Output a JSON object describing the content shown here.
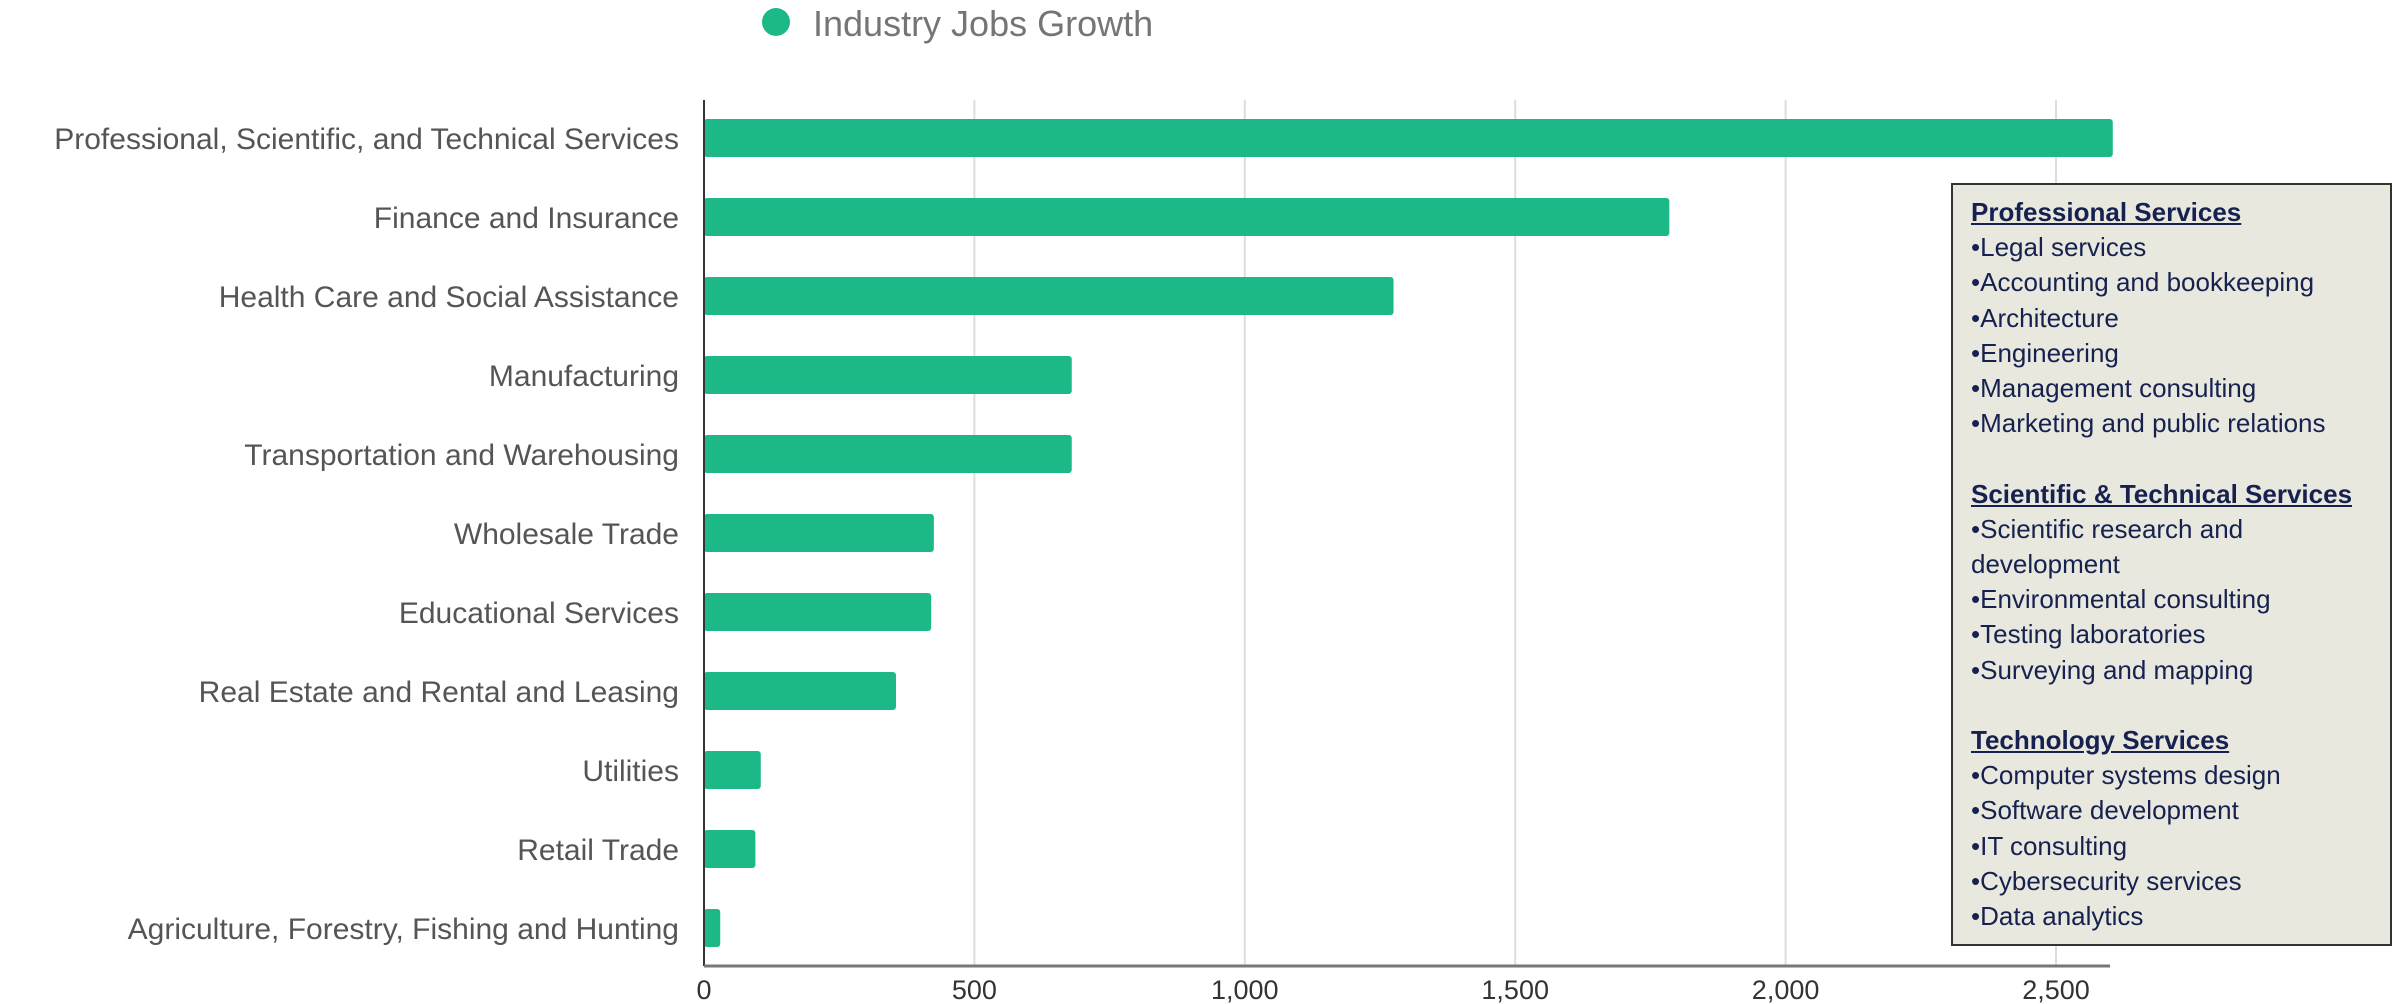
{
  "chart_data": {
    "type": "bar",
    "orientation": "horizontal",
    "categories": [
      "Professional, Scientific, and Technical Services",
      "Finance and Insurance",
      "Health Care and Social Assistance",
      "Manufacturing",
      "Transportation and Warehousing",
      "Wholesale Trade",
      "Educational Services",
      "Real Estate and Rental and Leasing",
      "Utilities",
      "Retail Trade",
      "Agriculture, Forestry, Fishing and Hunting"
    ],
    "series": [
      {
        "name": "Industry Jobs Growth",
        "values": [
          2605,
          1785,
          1275,
          680,
          680,
          425,
          420,
          355,
          105,
          95,
          30
        ]
      }
    ],
    "xlim": [
      0,
      2600
    ],
    "xticks": [
      0,
      500,
      1000,
      1500,
      2000,
      2500
    ],
    "xtick_labels": [
      "0",
      "500",
      "1,000",
      "1,500",
      "2,000",
      "2,500"
    ],
    "grid": true,
    "legend_position": "top",
    "colors": {
      "bar": "#1cb887",
      "grid": "#dddddd",
      "axis": "#333333"
    }
  },
  "info_box": {
    "sections": [
      {
        "heading": "Professional Services",
        "items": [
          "•Legal services",
          "•Accounting and bookkeeping",
          "•Architecture",
          "•Engineering",
          "•Management consulting",
          "•Marketing and public relations"
        ]
      },
      {
        "heading": "Scientific & Technical Services",
        "items": [
          "•Scientific research and development",
          "•Environmental consulting",
          "•Testing laboratories",
          "•Surveying and mapping"
        ]
      },
      {
        "heading": "Technology Services",
        "items": [
          "•Computer systems design",
          "•Software development",
          "•IT consulting",
          "•Cybersecurity services",
          "•Data analytics"
        ]
      }
    ]
  }
}
